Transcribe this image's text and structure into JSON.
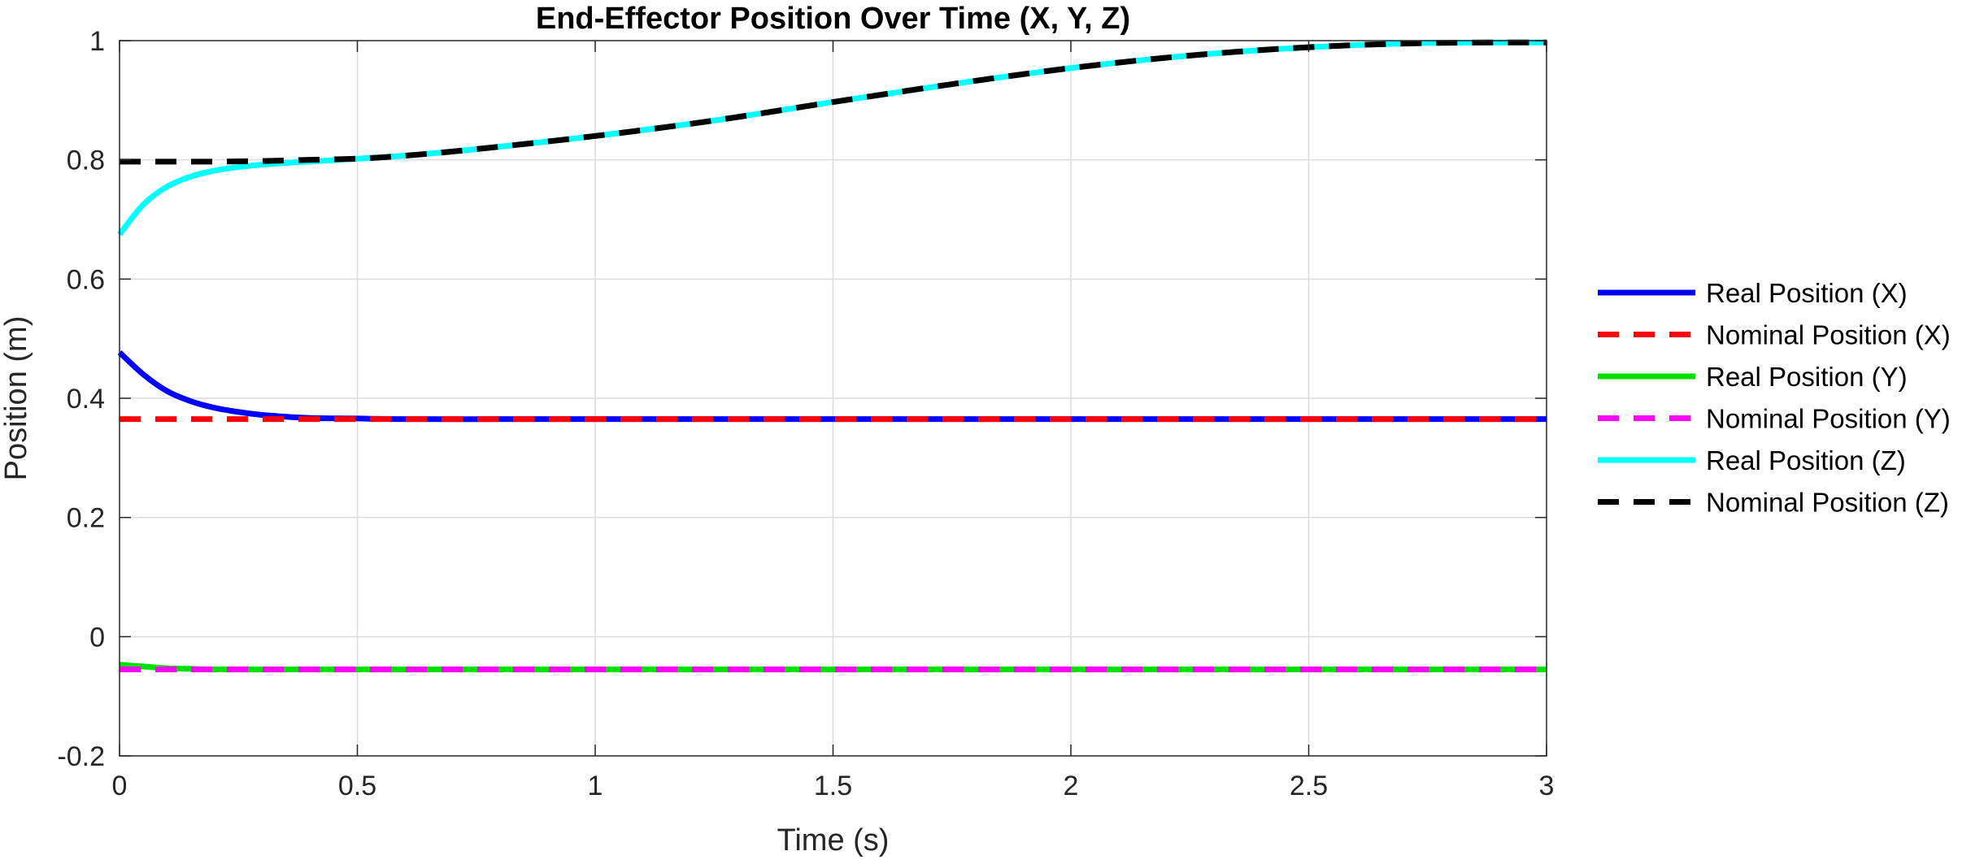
{
  "chart_data": {
    "type": "line",
    "title": "End-Effector Position Over Time (X, Y, Z)",
    "xlabel": "Time (s)",
    "ylabel": "Position (m)",
    "xlim": [
      0,
      3
    ],
    "ylim": [
      -0.2,
      1
    ],
    "xticks": [
      0,
      0.5,
      1,
      1.5,
      2,
      2.5,
      3
    ],
    "yticks": [
      -0.2,
      0,
      0.2,
      0.4,
      0.6,
      0.8,
      1
    ],
    "xtick_labels": [
      "0",
      "0.5",
      "1",
      "1.5",
      "2",
      "2.5",
      "3"
    ],
    "ytick_labels": [
      "-0.2",
      "0",
      "0.2",
      "0.4",
      "0.6",
      "0.8",
      "1"
    ],
    "grid": true,
    "legend_position": "outside-right",
    "series": [
      {
        "name": "Real Position (X)",
        "color": "#0000ff",
        "style": "solid",
        "x": [
          0,
          0.05,
          0.1,
          0.15,
          0.2,
          0.25,
          0.3,
          0.35,
          0.4,
          0.5,
          0.6,
          0.8,
          1.0,
          1.5,
          2.0,
          2.5,
          3.0
        ],
        "y": [
          0.477,
          0.44,
          0.412,
          0.395,
          0.384,
          0.377,
          0.372,
          0.369,
          0.367,
          0.366,
          0.365,
          0.365,
          0.365,
          0.365,
          0.365,
          0.365,
          0.365
        ]
      },
      {
        "name": "Nominal Position (X)",
        "color": "#ff0000",
        "style": "dashed",
        "x": [
          0,
          3
        ],
        "y": [
          0.365,
          0.365
        ]
      },
      {
        "name": "Real Position (Y)",
        "color": "#00e000",
        "style": "solid",
        "x": [
          0,
          0.05,
          0.1,
          0.15,
          0.2,
          0.3,
          0.5,
          1.0,
          2.0,
          3.0
        ],
        "y": [
          -0.047,
          -0.05,
          -0.053,
          -0.054,
          -0.055,
          -0.055,
          -0.055,
          -0.055,
          -0.055,
          -0.055
        ]
      },
      {
        "name": "Nominal Position (Y)",
        "color": "#ff00ff",
        "style": "dashed",
        "x": [
          0,
          3
        ],
        "y": [
          -0.055,
          -0.055
        ]
      },
      {
        "name": "Real Position (Z)",
        "color": "#00ffff",
        "style": "solid",
        "x": [
          0,
          0.05,
          0.1,
          0.15,
          0.2,
          0.25,
          0.3,
          0.35,
          0.4,
          0.5,
          0.6,
          0.75,
          1.0,
          1.25,
          1.5,
          1.75,
          2.0,
          2.25,
          2.5,
          2.75,
          3.0
        ],
        "y": [
          0.675,
          0.725,
          0.755,
          0.772,
          0.782,
          0.788,
          0.792,
          0.795,
          0.797,
          0.802,
          0.807,
          0.818,
          0.84,
          0.866,
          0.897,
          0.927,
          0.954,
          0.975,
          0.989,
          0.996,
          0.997
        ]
      },
      {
        "name": "Nominal Position (Z)",
        "color": "#000000",
        "style": "dashed",
        "x": [
          0,
          0.1,
          0.2,
          0.3,
          0.4,
          0.5,
          0.6,
          0.75,
          1.0,
          1.25,
          1.5,
          1.75,
          2.0,
          2.25,
          2.5,
          2.75,
          3.0
        ],
        "y": [
          0.797,
          0.797,
          0.797,
          0.798,
          0.8,
          0.802,
          0.807,
          0.818,
          0.84,
          0.866,
          0.897,
          0.927,
          0.954,
          0.975,
          0.989,
          0.996,
          0.997
        ]
      }
    ]
  }
}
